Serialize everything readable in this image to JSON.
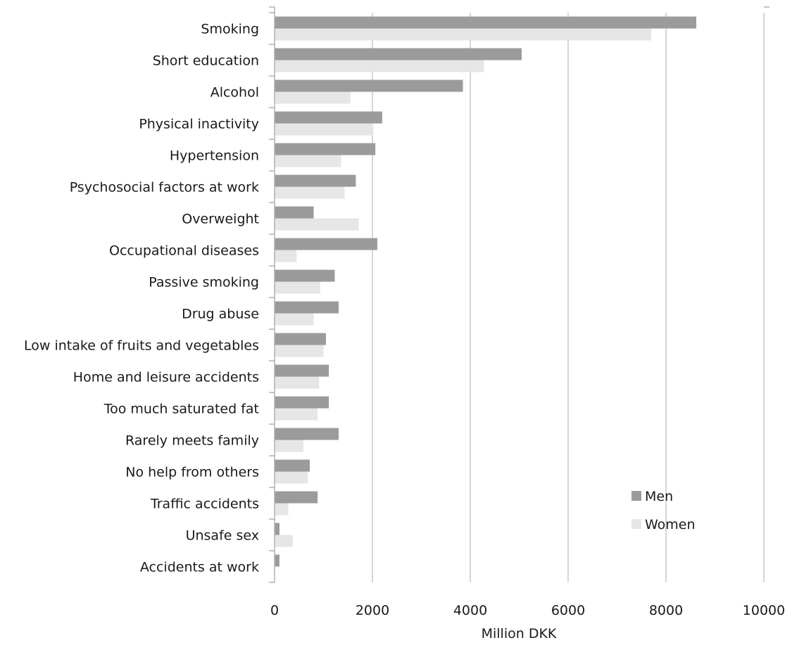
{
  "chart_data": {
    "type": "bar",
    "orientation": "horizontal",
    "categories": [
      "Smoking",
      "Short education",
      "Alcohol",
      "Physical inactivity",
      "Hypertension",
      "Psychosocial factors at work",
      "Overweight",
      "Occupational diseases",
      "Passive smoking",
      "Drug abuse",
      "Low intake of fruits and vegetables",
      "Home and leisure accidents",
      "Too much saturated fat",
      "Rarely meets family",
      "No help from others",
      "Traffic accidents",
      "Unsafe sex",
      "Accidents at work"
    ],
    "series": [
      {
        "name": "Men",
        "color": "#9b9b9b",
        "values": [
          8620,
          5050,
          3850,
          2200,
          2060,
          1660,
          800,
          2100,
          1230,
          1310,
          1050,
          1110,
          1110,
          1310,
          720,
          880,
          100,
          100
        ]
      },
      {
        "name": "Women",
        "color": "#e6e6e6",
        "values": [
          7700,
          4280,
          1550,
          2020,
          1360,
          1430,
          1720,
          450,
          930,
          800,
          1000,
          910,
          880,
          590,
          680,
          280,
          370,
          0
        ]
      }
    ],
    "xlabel": "Million DKK",
    "ylabel": "",
    "title": "",
    "xlim": [
      0,
      10000
    ],
    "xticks": [
      "0",
      "2000",
      "4000",
      "6000",
      "8000",
      "10000"
    ],
    "grid": "vertical",
    "legend_position": "bottom-right"
  }
}
